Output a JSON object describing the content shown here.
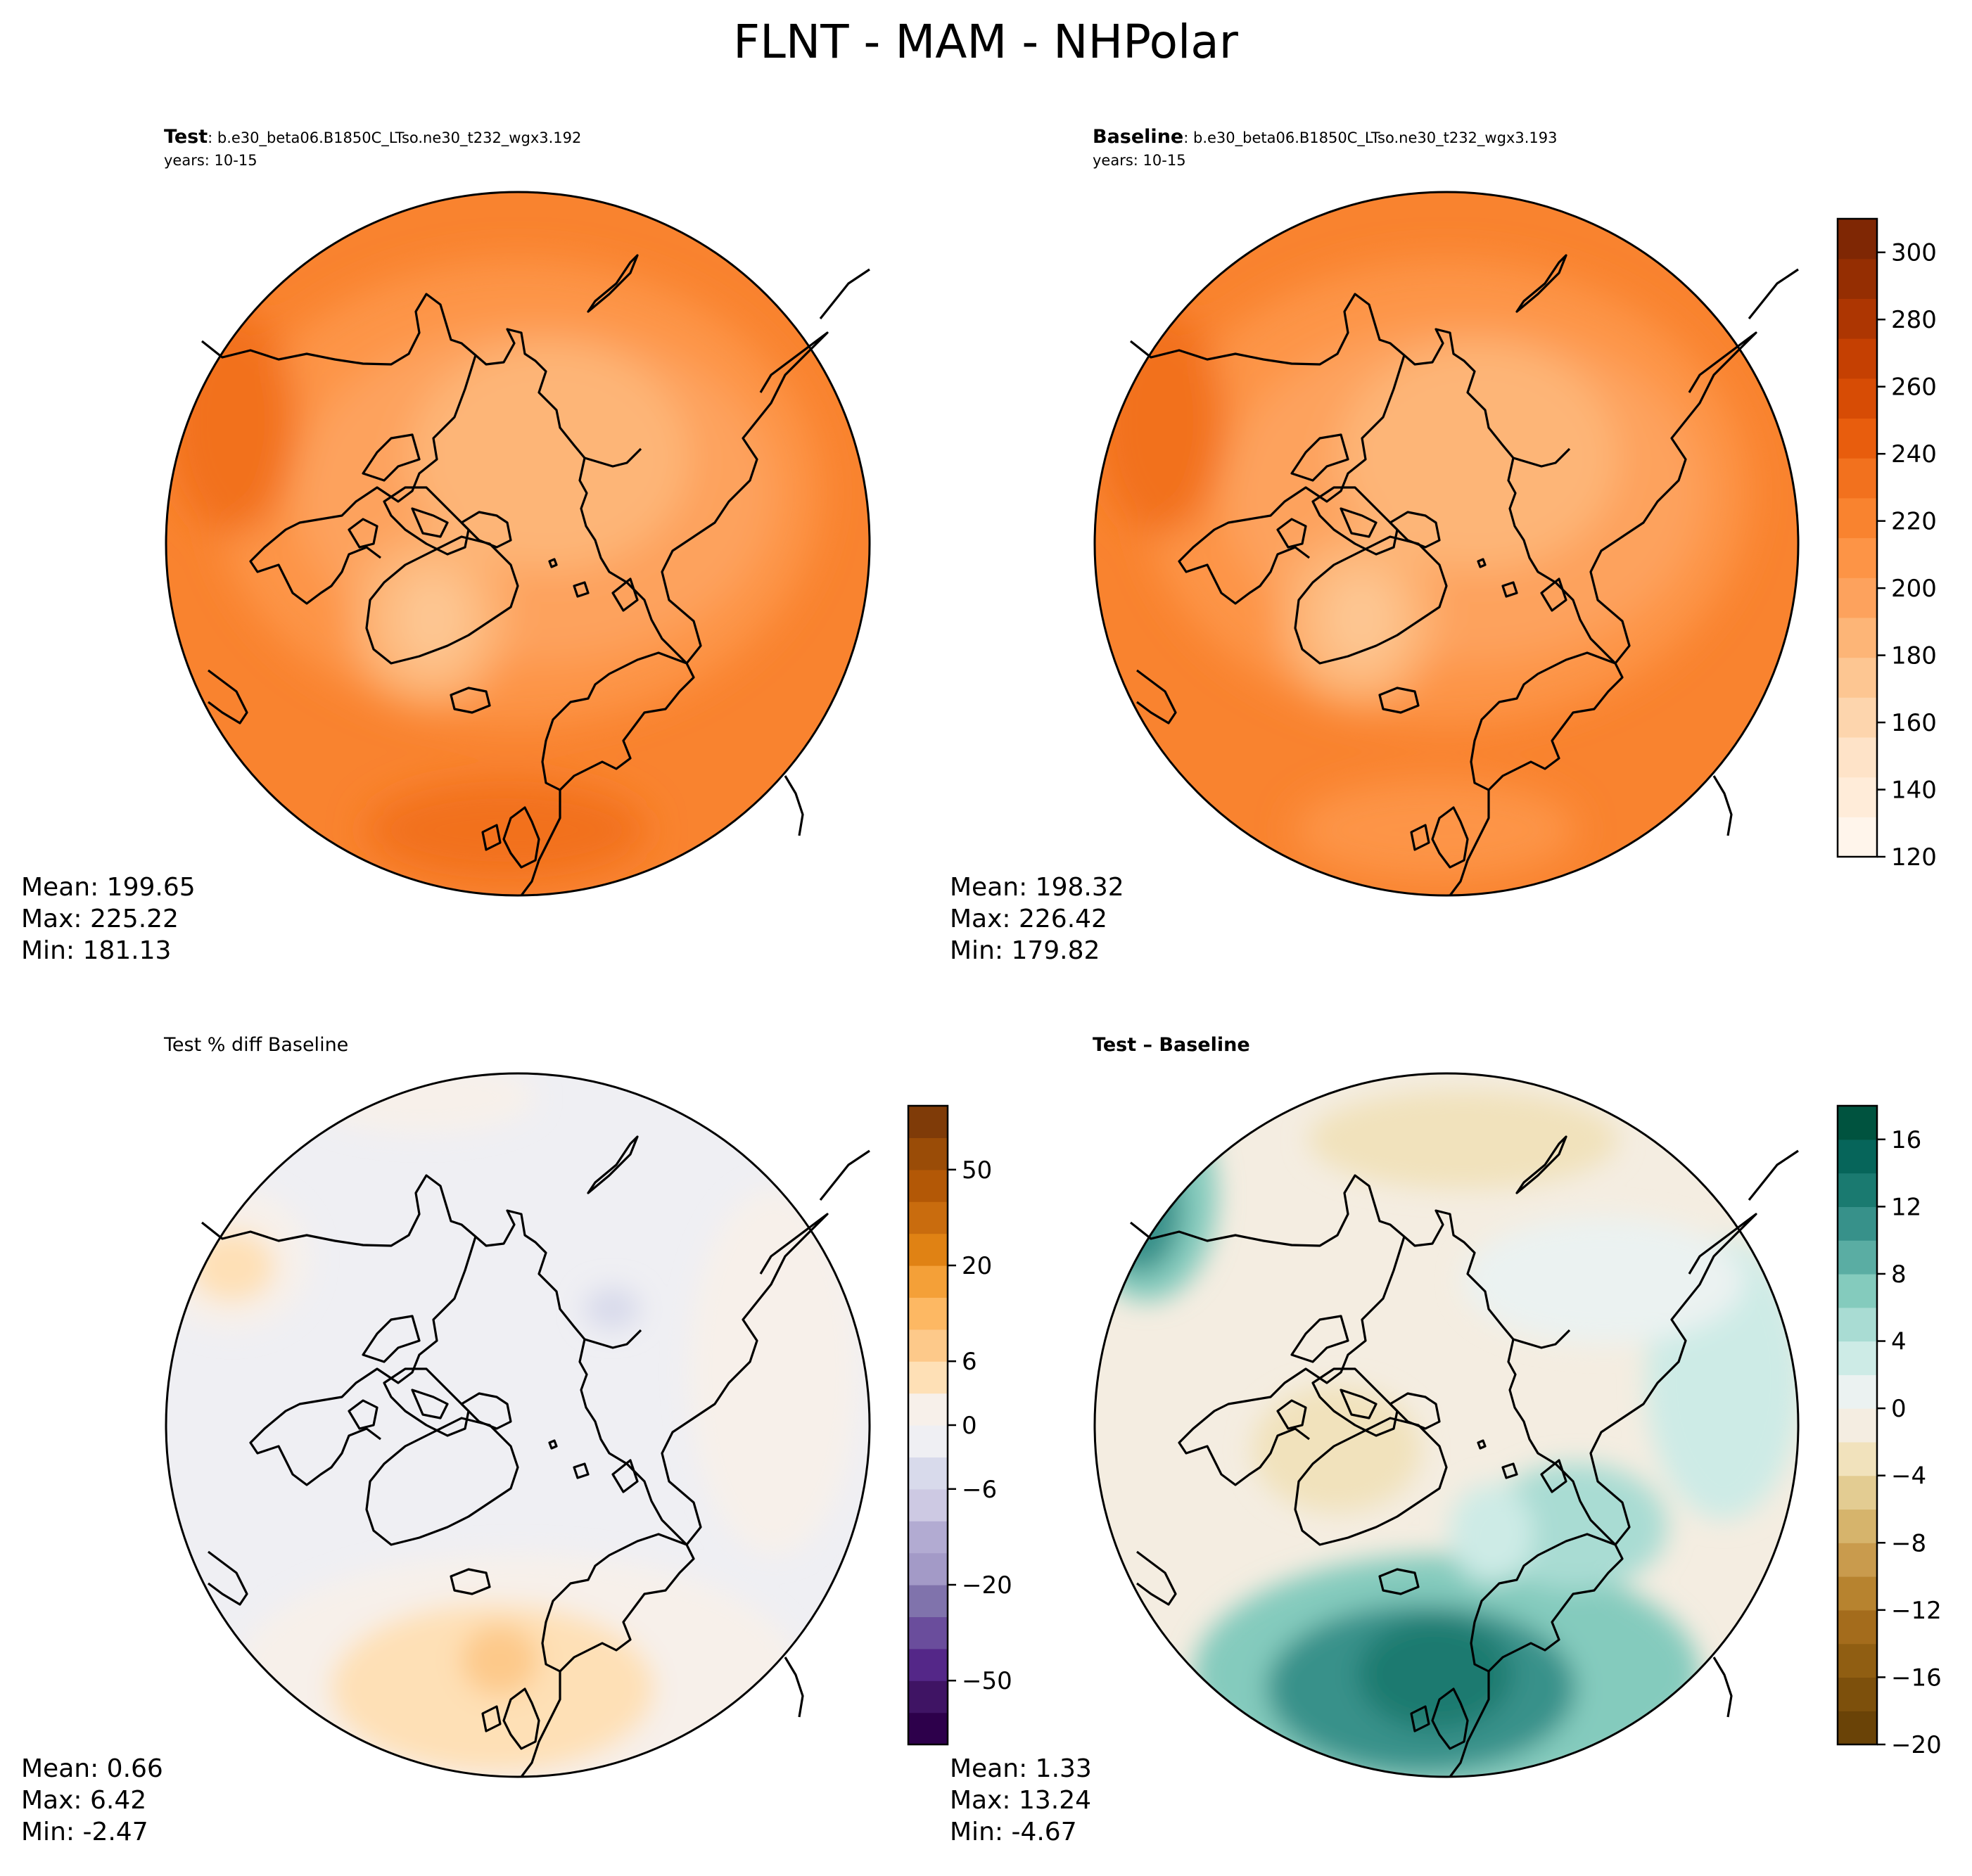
{
  "figure": {
    "title": "FLNT - MAM - NHPolar"
  },
  "panels": [
    {
      "id": "test",
      "title_bold": "Test",
      "title_rest": ": b.e30_beta06.B1850C_LTso.ne30_t232_wgx3.192",
      "subtitle": "years: 10-15",
      "stats": {
        "mean": "Mean: 199.65",
        "max": "Max: 225.22",
        "min": "Min: 181.13"
      }
    },
    {
      "id": "baseline",
      "title_bold": "Baseline",
      "title_rest": ": b.e30_beta06.B1850C_LTso.ne30_t232_wgx3.193",
      "subtitle": "years: 10-15",
      "stats": {
        "mean": "Mean: 198.32",
        "max": "Max: 226.42",
        "min": "Min: 179.82"
      }
    },
    {
      "id": "pctdiff",
      "title": "Test % diff Baseline",
      "stats": {
        "mean": "Mean:  0.66",
        "max": "Max:  6.42",
        "min": "Min: -2.47"
      }
    },
    {
      "id": "diff",
      "title": "Test – Baseline",
      "stats": {
        "mean": "Mean:  1.33",
        "max": "Max: 13.24",
        "min": "Min: -4.67"
      }
    }
  ],
  "colorbars": [
    {
      "id": "abs",
      "colormap": "Oranges",
      "ticks": [
        "300",
        "280",
        "260",
        "240",
        "220",
        "200",
        "180",
        "160",
        "140",
        "120"
      ],
      "colors": [
        "#fff5eb",
        "#ffecd9",
        "#fee3c8",
        "#fdd5ad",
        "#fdc692",
        "#fdb577",
        "#fda25d",
        "#fd9446",
        "#f9832f",
        "#f2711e",
        "#e85d0d",
        "#d74c05",
        "#c54002",
        "#ad3602",
        "#952e02",
        "#7f2704"
      ]
    },
    {
      "id": "pct",
      "colormap": "PuOr",
      "ticks": [
        "50",
        "20",
        "6",
        "0",
        "−6",
        "−20",
        "−50"
      ],
      "colors": [
        "#2d004b",
        "#3f1464",
        "#542788",
        "#6a4d9c",
        "#8073ac",
        "#a39ac7",
        "#b2abd2",
        "#cdc9e3",
        "#d8daeb",
        "#efeff3",
        "#f7f0ea",
        "#fee0b6",
        "#fdc98a",
        "#fdb863",
        "#f4a038",
        "#e08214",
        "#c96c0e",
        "#b35806",
        "#9a4c07",
        "#7f3b08"
      ]
    },
    {
      "id": "diff",
      "colormap": "BrBG",
      "ticks": [
        "16",
        "12",
        "8",
        "4",
        "0",
        "−4",
        "−8",
        "−12",
        "−16",
        "−20"
      ],
      "colors": [
        "#6a4307",
        "#7d500c",
        "#905e12",
        "#a46c1c",
        "#b7832f",
        "#c99b4d",
        "#d6b46c",
        "#e3cc92",
        "#f1e2bc",
        "#f4ede1",
        "#ebf2f1",
        "#cdebe6",
        "#a9dcd3",
        "#84cbbd",
        "#5aada3",
        "#37918a",
        "#1a7a70",
        "#06655a",
        "#00533f"
      ]
    }
  ]
}
